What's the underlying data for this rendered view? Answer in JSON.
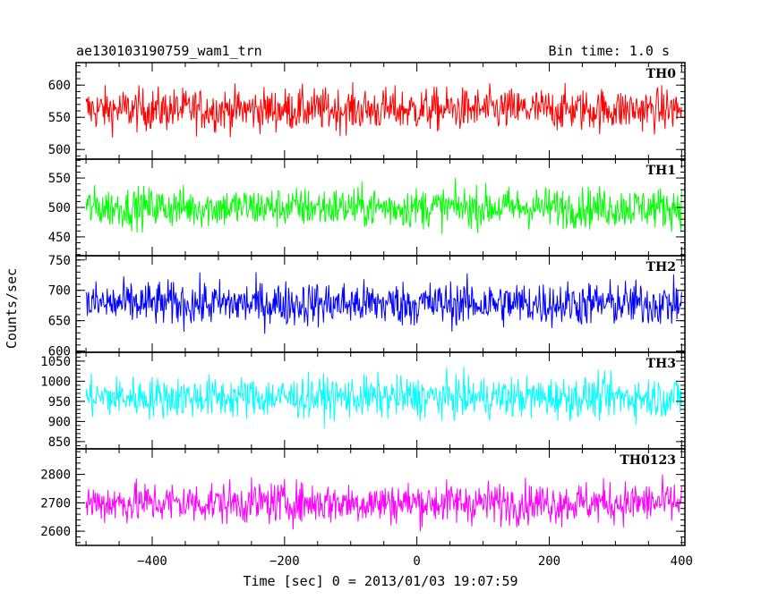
{
  "chart_data": {
    "type": "line",
    "title_left": "ae130103190759_wam1_trn",
    "title_right": "Bin time: 1.0 s",
    "xlabel": "Time [sec] 0 = 2013/01/03 19:07:59",
    "ylabel": "Counts/sec",
    "xlim": [
      -515,
      405
    ],
    "x_range": [
      -500,
      400
    ],
    "x_ticks": [
      -400,
      -200,
      0,
      200,
      400
    ],
    "x_tick_labels": [
      "−400",
      "−200",
      "0",
      "200",
      "400"
    ],
    "panels": [
      {
        "name": "TH0",
        "color": "#ff0000",
        "ylim": [
          485,
          635
        ],
        "y_ticks": [
          500,
          550,
          600
        ],
        "mean": 562,
        "spread": 27
      },
      {
        "name": "TH1",
        "color": "#00ff00",
        "ylim": [
          418,
          582
        ],
        "y_ticks": [
          450,
          500,
          550
        ],
        "mean": 500,
        "spread": 28
      },
      {
        "name": "TH2",
        "color": "#0000ff",
        "ylim": [
          598,
          757
        ],
        "y_ticks": [
          600,
          650,
          700,
          750
        ],
        "mean": 678,
        "spread": 30
      },
      {
        "name": "TH3",
        "color": "#00ffff",
        "ylim": [
          832,
          1072
        ],
        "y_ticks": [
          850,
          900,
          950,
          1000,
          1050
        ],
        "mean": 960,
        "spread": 42
      },
      {
        "name": "TH0123",
        "color": "#ff00ff",
        "ylim": [
          2550,
          2890
        ],
        "y_ticks": [
          2600,
          2700,
          2800
        ],
        "mean": 2700,
        "spread": 60
      }
    ]
  }
}
